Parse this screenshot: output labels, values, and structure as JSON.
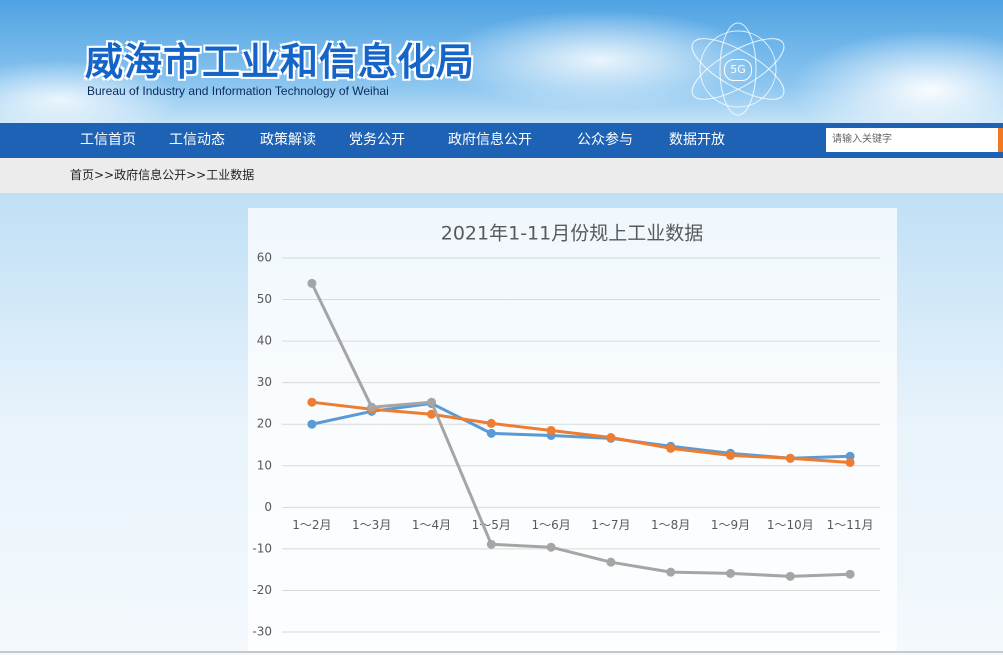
{
  "header": {
    "title": "威海市工业和信息化局",
    "subtitle": "Bureau of Industry and Information Technology of Weihai",
    "badge": "5G"
  },
  "nav": [
    "工信首页",
    "工信动态",
    "政策解读",
    "党务公开",
    "政府信息公开",
    "公众参与",
    "数据开放"
  ],
  "search_placeholder": "请输入关键字",
  "breadcrumb": "首页>>政府信息公开>>工业数据",
  "chart_data": {
    "type": "line",
    "title": "2021年1-11月份规上工业数据",
    "categories": [
      "1～2月",
      "1～3月",
      "1～4月",
      "1～5月",
      "1～6月",
      "1～7月",
      "1～8月",
      "1～9月",
      "1～10月",
      "1～11月"
    ],
    "series": [
      {
        "color": "#5b9bd5",
        "values": [
          20.0,
          23.1,
          25.0,
          17.8,
          17.3,
          16.6,
          14.7,
          13.0,
          11.8,
          12.3
        ]
      },
      {
        "color": "#ed7d31",
        "values": [
          25.3,
          23.6,
          22.4,
          20.2,
          18.5,
          16.8,
          14.2,
          12.5,
          11.8,
          10.8
        ]
      },
      {
        "color": "#a5a5a5",
        "values": [
          53.9,
          24.1,
          25.3,
          -8.9,
          -9.6,
          -13.2,
          -15.6,
          -15.9,
          -16.6,
          -16.1
        ]
      }
    ],
    "ylim": [
      -30,
      60
    ],
    "yticks": [
      -30,
      -20,
      -10,
      0,
      10,
      20,
      30,
      40,
      50,
      60
    ],
    "grid": true
  }
}
